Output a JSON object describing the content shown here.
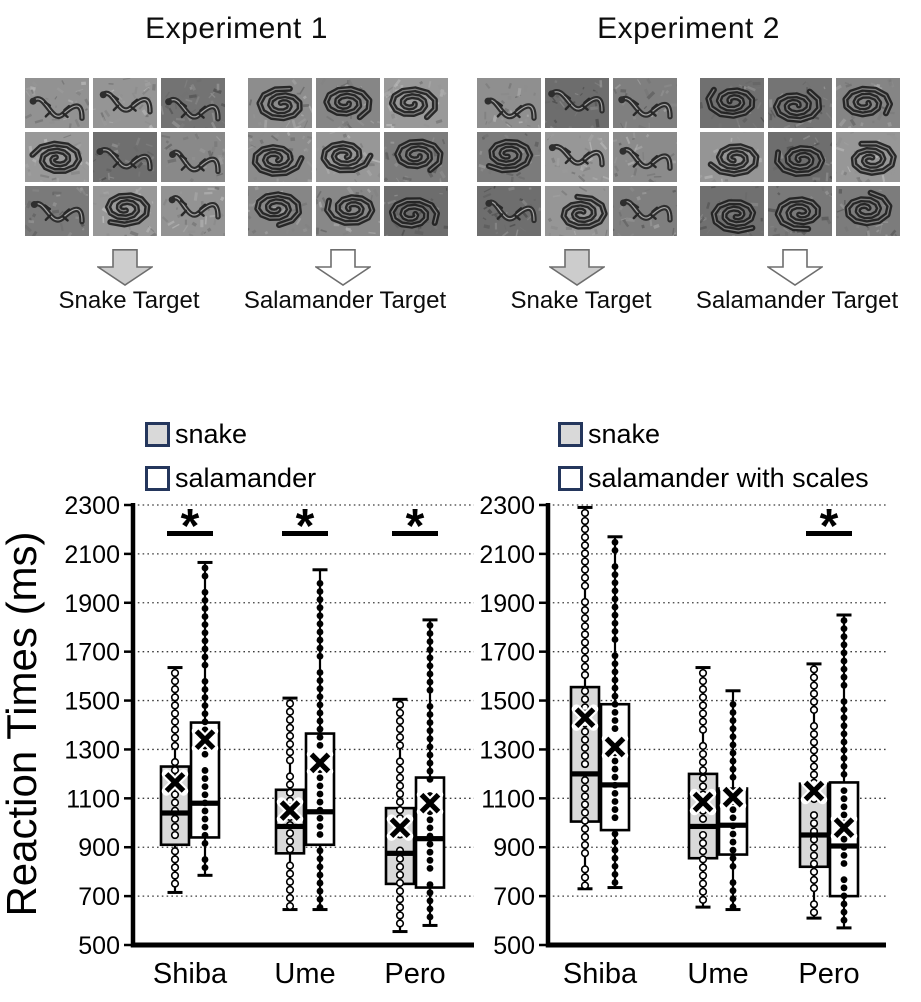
{
  "figure": {
    "experiments": [
      {
        "title": "Experiment 1",
        "targets": [
          {
            "label": "Snake Target",
            "arrow_fill": "#cccccc"
          },
          {
            "label": "Salamander Target",
            "arrow_fill": "#ffffff"
          }
        ]
      },
      {
        "title": "Experiment 2",
        "targets": [
          {
            "label": "Snake Target",
            "arrow_fill": "#cccccc"
          },
          {
            "label": "Salamander Target",
            "arrow_fill": "#ffffff"
          }
        ]
      }
    ],
    "colors": {
      "snake_box_fill": "#d9d9d9",
      "salamander_box_fill": "#ffffff",
      "legend_border": "#24365c",
      "ink": "#000000",
      "arrow_outline": "#6e6e6e"
    }
  },
  "legends": [
    {
      "items": [
        {
          "label": "snake",
          "fill": "#d9d9d9"
        },
        {
          "label": "salamander",
          "fill": "#ffffff"
        }
      ]
    },
    {
      "items": [
        {
          "label": "snake",
          "fill": "#d9d9d9"
        },
        {
          "label": "salamander with scales",
          "fill": "#ffffff"
        }
      ]
    }
  ],
  "chart_data": [
    {
      "type": "boxplot",
      "experiment": "Experiment 1",
      "ylabel": "Reaction Times (ms)",
      "ylim": [
        500,
        2300
      ],
      "yticks": [
        500,
        700,
        900,
        1100,
        1300,
        1500,
        1700,
        1900,
        2100,
        2300
      ],
      "grid": "dotted-horizontal",
      "categories": [
        "Shiba",
        "Ume",
        "Pero"
      ],
      "series": [
        {
          "name": "snake",
          "fill": "#d9d9d9",
          "point_style": "open-circle",
          "boxes": [
            {
              "min": 715,
              "q1": 910,
              "median": 1040,
              "mean": 1165,
              "q3": 1230,
              "max": 1635
            },
            {
              "min": 645,
              "q1": 875,
              "median": 985,
              "mean": 1050,
              "q3": 1135,
              "max": 1510
            },
            {
              "min": 555,
              "q1": 750,
              "median": 875,
              "mean": 980,
              "q3": 1060,
              "max": 1505
            }
          ]
        },
        {
          "name": "salamander",
          "fill": "#ffffff",
          "point_style": "filled-circle",
          "boxes": [
            {
              "min": 785,
              "q1": 940,
              "median": 1080,
              "mean": 1340,
              "q3": 1410,
              "max": 2065
            },
            {
              "min": 645,
              "q1": 910,
              "median": 1045,
              "mean": 1245,
              "q3": 1365,
              "max": 2035
            },
            {
              "min": 580,
              "q1": 735,
              "median": 935,
              "mean": 1080,
              "q3": 1185,
              "max": 1830
            }
          ]
        }
      ],
      "significant": [
        "Shiba",
        "Ume",
        "Pero"
      ],
      "sig_symbol": "*"
    },
    {
      "type": "boxplot",
      "experiment": "Experiment 2",
      "ylabel": "Reaction Times (ms)",
      "ylim": [
        500,
        2300
      ],
      "yticks": [
        500,
        700,
        900,
        1100,
        1300,
        1500,
        1700,
        1900,
        2100,
        2300
      ],
      "grid": "dotted-horizontal",
      "categories": [
        "Shiba",
        "Ume",
        "Pero"
      ],
      "series": [
        {
          "name": "snake",
          "fill": "#d9d9d9",
          "point_style": "open-circle",
          "boxes": [
            {
              "min": 730,
              "q1": 1005,
              "median": 1200,
              "mean": 1430,
              "q3": 1555,
              "max": 2290
            },
            {
              "min": 655,
              "q1": 855,
              "median": 985,
              "mean": 1085,
              "q3": 1200,
              "max": 1635
            },
            {
              "min": 610,
              "q1": 820,
              "median": 950,
              "mean": 1130,
              "q3": 1160,
              "max": 1650
            }
          ]
        },
        {
          "name": "salamander with scales",
          "fill": "#ffffff",
          "point_style": "filled-circle",
          "boxes": [
            {
              "min": 735,
              "q1": 970,
              "median": 1155,
              "mean": 1310,
              "q3": 1485,
              "max": 2170
            },
            {
              "min": 645,
              "q1": 870,
              "median": 990,
              "mean": 1105,
              "q3": 1140,
              "max": 1540
            },
            {
              "min": 570,
              "q1": 700,
              "median": 905,
              "mean": 980,
              "q3": 1165,
              "max": 1850
            }
          ]
        }
      ],
      "significant": [
        "Pero"
      ],
      "sig_symbol": "*"
    }
  ]
}
